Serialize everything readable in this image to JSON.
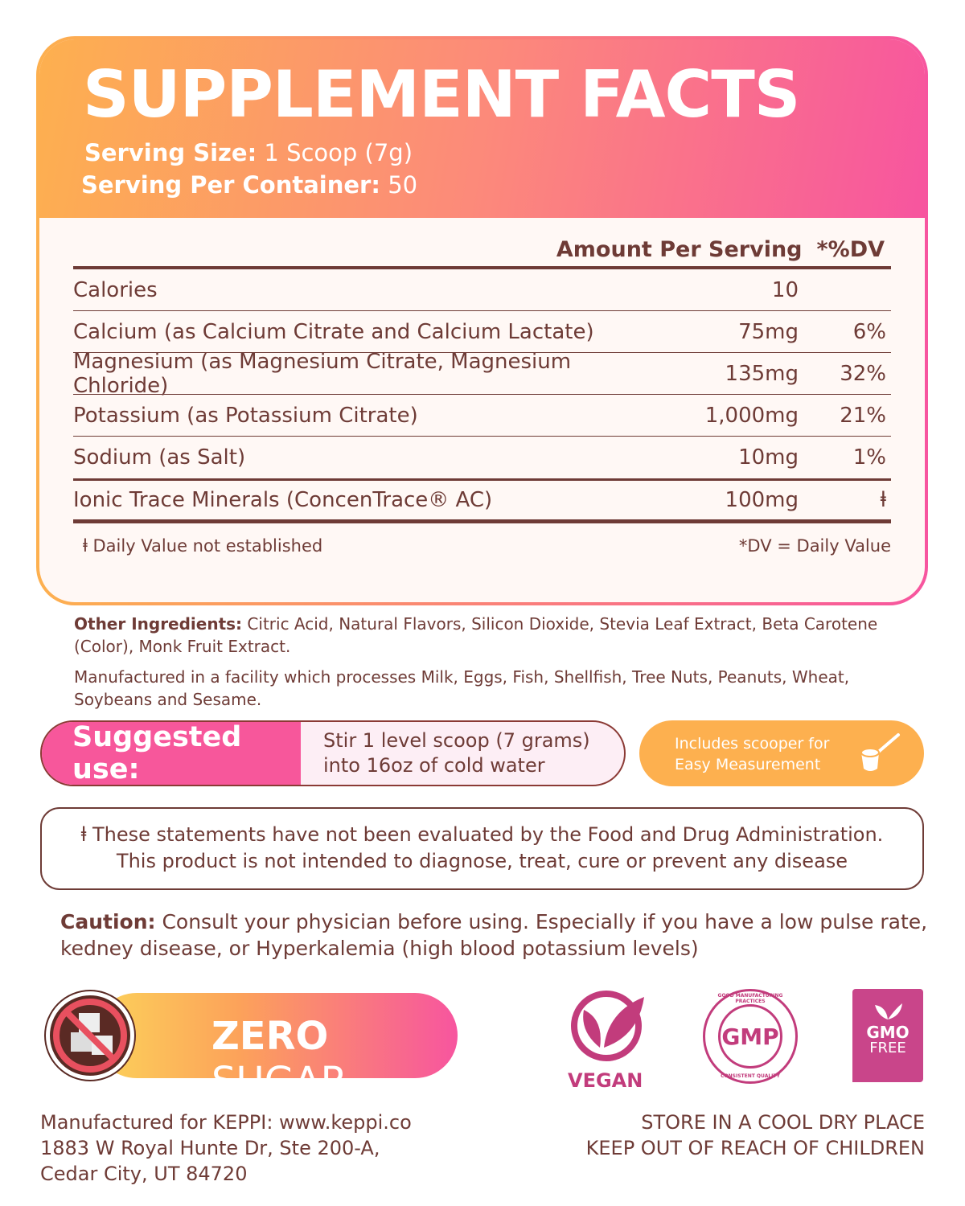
{
  "header": {
    "title": "SUPPLEMENT FACTS",
    "serving_size_label": "Serving Size:",
    "serving_size": "1 Scoop (7g)",
    "servings_label": "Serving Per Container:",
    "servings": "50"
  },
  "table": {
    "col_amount": "Amount Per Serving",
    "col_dv": "*%DV",
    "rows": [
      {
        "name": "Calories",
        "amount": "10",
        "dv": ""
      },
      {
        "name": "Calcium (as Calcium Citrate and Calcium Lactate)",
        "amount": "75mg",
        "dv": "6%"
      },
      {
        "name": "Magnesium (as Magnesium Citrate, Magnesium Chloride)",
        "amount": "135mg",
        "dv": "32%"
      },
      {
        "name": "Potassium (as Potassium Citrate)",
        "amount": "1,000mg",
        "dv": "21%"
      },
      {
        "name": "Sodium (as Salt)",
        "amount": "10mg",
        "dv": "1%"
      },
      {
        "name": "Ionic Trace Minerals (ConcenTrace® AC)",
        "amount": "100mg",
        "dv": "ⱡ"
      }
    ],
    "footnote_left": "ⱡ Daily Value not established",
    "footnote_right": "*DV = Daily Value"
  },
  "other": {
    "label": "Other Ingredients:",
    "text": " Citric Acid, Natural Flavors, Silicon Dioxide, Stevia Leaf Extract, Beta Carotene (Color), Monk Fruit Extract.",
    "facility": "Manufactured in a facility which processes Milk, Eggs, Fish, Shellfish, Tree Nuts, Peanuts, Wheat, Soybeans and Sesame."
  },
  "suggested": {
    "label": "Suggested use:",
    "line1": "Stir 1 level scoop (7 grams)",
    "line2": "into 16oz of cold water"
  },
  "scooper": {
    "line1": "Includes scooper for",
    "line2": "Easy Measurement"
  },
  "fda": {
    "line1": "ⱡ These statements have not been evaluated by the Food and Drug Administration.",
    "line2": "This product is not intended to diagnose, treat, cure or prevent any disease"
  },
  "caution": {
    "label": "Caution:",
    "text": "  Consult your physician before using. Especially if you have a low pulse rate, kedney disease, or Hyperkalemia (high blood potassium levels)"
  },
  "zero_sugar": {
    "bold": "ZERO",
    "rest": " SUGAR"
  },
  "badges": {
    "vegan": "VEGAN",
    "gmp": "GMP",
    "gmp_top": "GOOD MANUFACTURING PRACTICES",
    "gmp_bottom": "CONSISTENT QUALITY",
    "gmo1": "GMO",
    "gmo2": "FREE"
  },
  "address": {
    "line1": "Manufactured for KEPPI: www.keppi.co",
    "line2": "1883 W Royal Hunte Dr, Ste 200-A,",
    "line3": "Cedar City, UT 84720"
  },
  "storage": {
    "line1": "STORE IN A COOL DRY PLACE",
    "line2": "KEEP OUT OF REACH OF CHILDREN"
  },
  "colors": {
    "brown": "#6e3b36",
    "pink": "#f7559f",
    "orange": "#fdb04f"
  }
}
